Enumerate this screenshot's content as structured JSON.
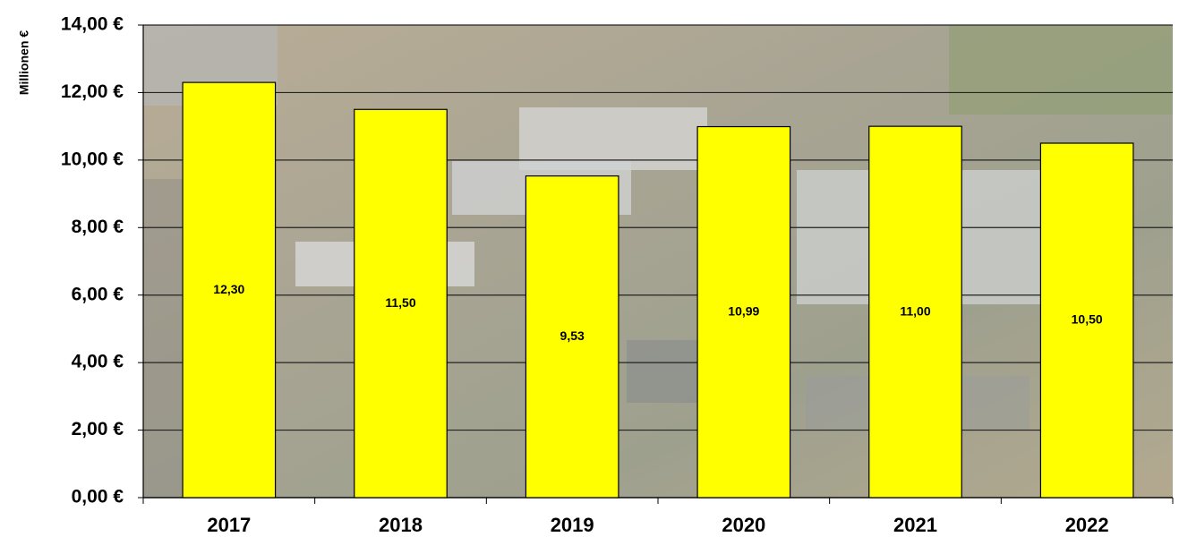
{
  "chart_data": {
    "type": "bar",
    "y_label": "Millionen €",
    "categories": [
      "2017",
      "2018",
      "2019",
      "2020",
      "2021",
      "2022"
    ],
    "values": [
      12.3,
      11.5,
      9.53,
      10.99,
      11.0,
      10.5
    ],
    "value_labels": [
      "12,30",
      "11,50",
      "9,53",
      "10,99",
      "11,00",
      "10,50"
    ],
    "color": "#ffff00",
    "ylim": [
      0,
      14
    ],
    "yticks": [
      {
        "value": 0,
        "label": "0,00 €"
      },
      {
        "value": 2,
        "label": "2,00 €"
      },
      {
        "value": 4,
        "label": "4,00 €"
      },
      {
        "value": 6,
        "label": "6,00 €"
      },
      {
        "value": 8,
        "label": "8,00 €"
      },
      {
        "value": 10,
        "label": "10,00 €"
      },
      {
        "value": 12,
        "label": "12,00 €"
      },
      {
        "value": 14,
        "label": "14,00 €"
      }
    ],
    "grid": true
  }
}
